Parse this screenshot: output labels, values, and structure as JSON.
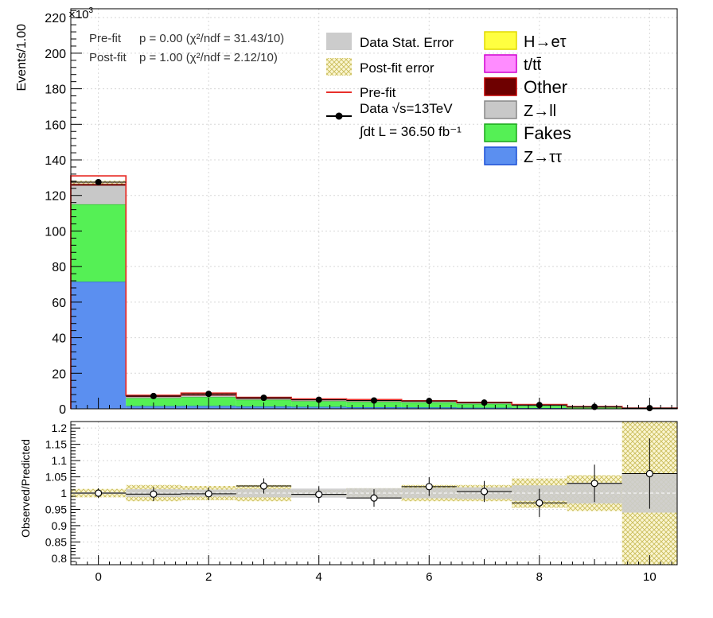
{
  "chart_data": [
    {
      "type": "bar",
      "subtype": "stacked-histogram",
      "ylabel": "Events/1.00",
      "y_multiplier": "×10",
      "y_multiplier_exp": "3",
      "ylim": [
        0,
        225
      ],
      "xlim": [
        -0.5,
        10.5
      ],
      "yticks": [
        0,
        20,
        40,
        60,
        80,
        100,
        120,
        140,
        160,
        180,
        200,
        220
      ],
      "grid": true,
      "fit_info": [
        {
          "label": "Pre-fit",
          "text": "p = 0.00 (χ²/ndf = 31.43/10)"
        },
        {
          "label": "Post-fit",
          "text": "p = 1.00 (χ²/ndf = 2.12/10)"
        }
      ],
      "x": [
        0,
        1,
        2,
        3,
        4,
        5,
        6,
        7,
        8,
        9,
        10
      ],
      "series": [
        {
          "name": "Z→ττ",
          "color": "#5b8ff0",
          "values": [
            71.5,
            1.5,
            1.6,
            1.3,
            1.1,
            0.9,
            0.8,
            0.6,
            0.4,
            0.2,
            0.1
          ]
        },
        {
          "name": "Fakes",
          "color": "#55f055",
          "values": [
            43.5,
            4.5,
            5.0,
            3.8,
            3.2,
            3.0,
            2.8,
            2.2,
            1.2,
            0.6,
            0.2
          ]
        },
        {
          "name": "Z→ll",
          "color": "#c8c8c8",
          "values": [
            10.5,
            0.6,
            0.8,
            0.5,
            0.5,
            0.4,
            0.4,
            0.3,
            0.2,
            0.1,
            0.05
          ]
        },
        {
          "name": "Other",
          "color": "#6e0000",
          "values": [
            1.5,
            0.5,
            0.6,
            0.5,
            0.4,
            0.4,
            0.3,
            0.3,
            0.2,
            0.1,
            0.05
          ]
        },
        {
          "name": "t/tt̄",
          "color": "#ff8cff",
          "values": [
            0.3,
            0.2,
            0.2,
            0.2,
            0.1,
            0.1,
            0.1,
            0.1,
            0.1,
            0.05,
            0.02
          ]
        },
        {
          "name": "H→eτ",
          "color": "#ffff40",
          "values": [
            0.1,
            0.1,
            0.1,
            0.1,
            0.1,
            0.1,
            0.1,
            0.1,
            0.05,
            0.05,
            0.01
          ]
        }
      ],
      "prefit_values": [
        131,
        7.6,
        8.8,
        6.4,
        5.5,
        5.2,
        4.5,
        3.6,
        2.4,
        1.2,
        0.4
      ],
      "data_values": [
        127.5,
        7.2,
        8.4,
        6.2,
        5.1,
        4.7,
        4.4,
        3.5,
        2.1,
        1.1,
        0.4
      ],
      "legend": [
        {
          "label": "Data Stat. Error",
          "style": "box-gray"
        },
        {
          "label": "Post-fit error",
          "style": "hatch"
        },
        {
          "label": "Pre-fit",
          "style": "red-line"
        },
        {
          "label": "Data  √s=13TeV",
          "style": "marker"
        },
        {
          "label": "∫dt L = 36.50 fb⁻¹",
          "style": "none"
        }
      ]
    },
    {
      "type": "scatter",
      "subtype": "ratio",
      "ylabel": "Observed/Predicted",
      "ylim": [
        0.78,
        1.22
      ],
      "xlim": [
        -0.5,
        10.5
      ],
      "yticks": [
        0.8,
        0.85,
        0.9,
        0.95,
        1.0,
        1.05,
        1.1,
        1.15,
        1.2
      ],
      "ytick_labels": [
        "0.8",
        "0.85",
        "0.9",
        "0.95",
        "1",
        "1.05",
        "1.1",
        "1.15",
        "1.2"
      ],
      "xticks": [
        0,
        2,
        4,
        6,
        8,
        10
      ],
      "grid": true,
      "x": [
        0,
        1,
        2,
        3,
        4,
        5,
        6,
        7,
        8,
        9,
        10
      ],
      "values": [
        1.0,
        0.997,
        0.998,
        1.022,
        0.996,
        0.985,
        1.02,
        1.005,
        0.97,
        1.03,
        1.06
      ],
      "stat_err": [
        0.003,
        0.012,
        0.011,
        0.013,
        0.014,
        0.015,
        0.016,
        0.018,
        0.024,
        0.032,
        0.06
      ],
      "syst_err": [
        0.013,
        0.025,
        0.022,
        0.025,
        0.01,
        0.015,
        0.025,
        0.025,
        0.045,
        0.055,
        0.25
      ]
    }
  ]
}
